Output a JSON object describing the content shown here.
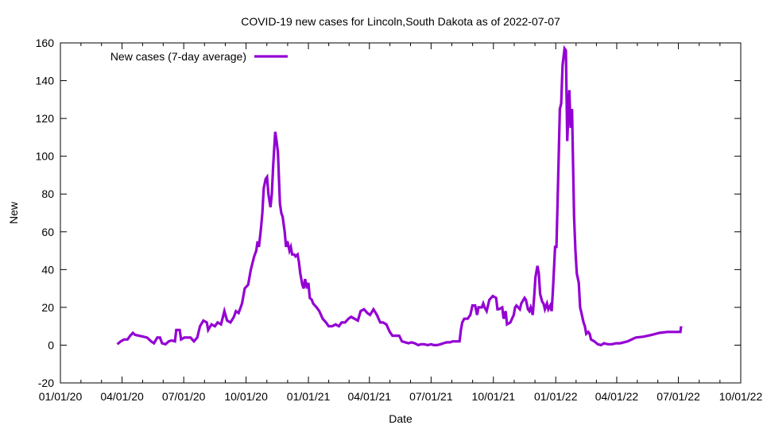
{
  "chart_data": {
    "type": "line",
    "title": "COVID-19 new cases for Lincoln,South Dakota as of 2022-07-07",
    "xlabel": "Date",
    "ylabel": "New",
    "ylim": [
      -20,
      160
    ],
    "yticks": [
      -20,
      0,
      20,
      40,
      60,
      80,
      100,
      120,
      140,
      160
    ],
    "x_unit": "days since 2020-01-01",
    "xlim": [
      0,
      1004
    ],
    "xticks": [
      {
        "day": 0,
        "label": "01/01/20"
      },
      {
        "day": 91,
        "label": "04/01/20"
      },
      {
        "day": 182,
        "label": "07/01/20"
      },
      {
        "day": 274,
        "label": "10/01/20"
      },
      {
        "day": 366,
        "label": "01/01/21"
      },
      {
        "day": 456,
        "label": "04/01/21"
      },
      {
        "day": 547,
        "label": "07/01/21"
      },
      {
        "day": 639,
        "label": "10/01/21"
      },
      {
        "day": 731,
        "label": "01/01/22"
      },
      {
        "day": 821,
        "label": "04/01/22"
      },
      {
        "day": 912,
        "label": "07/01/22"
      },
      {
        "day": 1004,
        "label": "10/01/22"
      }
    ],
    "legend_position": "top-left",
    "series": [
      {
        "name": "New cases (7-day average)",
        "color": "#9400d3",
        "days": [
          84,
          89,
          94,
          99,
          103,
          107,
          110,
          116,
          122,
          128,
          134,
          138,
          143,
          147,
          150,
          155,
          160,
          164,
          169,
          171,
          176,
          178,
          183,
          188,
          192,
          197,
          202,
          206,
          211,
          216,
          218,
          223,
          228,
          232,
          237,
          242,
          246,
          251,
          256,
          259,
          263,
          268,
          272,
          277,
          281,
          286,
          289,
          291,
          293,
          296,
          298,
          300,
          303,
          305,
          307,
          310,
          312,
          314,
          317,
          319,
          321,
          324,
          326,
          328,
          331,
          333,
          335,
          338,
          340,
          342,
          345,
          347,
          350,
          352,
          354,
          357,
          359,
          361,
          364,
          366,
          368,
          371,
          373,
          378,
          382,
          387,
          392,
          396,
          401,
          406,
          411,
          415,
          420,
          425,
          429,
          434,
          439,
          443,
          448,
          453,
          457,
          462,
          467,
          472,
          476,
          481,
          486,
          490,
          495,
          500,
          504,
          509,
          514,
          518,
          523,
          528,
          532,
          537,
          542,
          547,
          551,
          556,
          561,
          565,
          570,
          575,
          579,
          584,
          589,
          591,
          593,
          596,
          601,
          605,
          608,
          612,
          615,
          617,
          622,
          624,
          626,
          629,
          633,
          638,
          643,
          645,
          647,
          652,
          654,
          657,
          659,
          664,
          669,
          671,
          673,
          678,
          680,
          685,
          687,
          690,
          692,
          694,
          697,
          699,
          701,
          704,
          706,
          708,
          711,
          713,
          715,
          718,
          720,
          723,
          725,
          727,
          730,
          732,
          734,
          737,
          739,
          741,
          744,
          746,
          748,
          751,
          753,
          755,
          758,
          760,
          762,
          765,
          767,
          769,
          772,
          774,
          776,
          779,
          781,
          783,
          788,
          793,
          798,
          802,
          808,
          814,
          820,
          826,
          837,
          849,
          861,
          873,
          884,
          896,
          908,
          915,
          916
        ],
        "values": [
          0.5,
          2,
          3,
          3,
          5,
          6.5,
          5.5,
          5,
          4.5,
          4,
          2,
          1,
          4,
          4,
          1,
          0.5,
          2,
          2.5,
          2,
          8,
          8,
          3,
          4,
          4,
          4,
          2,
          4,
          10,
          13,
          12,
          8,
          11,
          10,
          12,
          11,
          18,
          13,
          12,
          15,
          18,
          17,
          22,
          30,
          32,
          40,
          47,
          50,
          55,
          52,
          62,
          70,
          83,
          88,
          89,
          80,
          73,
          80,
          95,
          113,
          108,
          102,
          75,
          70,
          68,
          60,
          52,
          55,
          50,
          52,
          48,
          48,
          47,
          48,
          44,
          38,
          32,
          30,
          35,
          30,
          33,
          25,
          24,
          22,
          20,
          18,
          14,
          12,
          10,
          10,
          11,
          10,
          12,
          12,
          14,
          15,
          14,
          13,
          18,
          19,
          17,
          16,
          19,
          16,
          12,
          12,
          11,
          7,
          5,
          5,
          5,
          2,
          1.5,
          1,
          1.5,
          1,
          0,
          0.5,
          0.5,
          0,
          0.5,
          0,
          0,
          0.5,
          1,
          1.5,
          1.5,
          2,
          2,
          2,
          8,
          12,
          14,
          14,
          16,
          21,
          21,
          16,
          20,
          20,
          22,
          20,
          18,
          24,
          26,
          25,
          19,
          19,
          20,
          14,
          18,
          11,
          12,
          16,
          20,
          21,
          19,
          22,
          25,
          24,
          19,
          18,
          20,
          16,
          25,
          36,
          42,
          38,
          27,
          23,
          22,
          19,
          22,
          19,
          21,
          18,
          30,
          52,
          52,
          80,
          125,
          128,
          148,
          157,
          156,
          108,
          135,
          115,
          125,
          68,
          50,
          38,
          33,
          20,
          17,
          12,
          10,
          6,
          7,
          6,
          3,
          2,
          0.5,
          0,
          1,
          0.5,
          0.5,
          1,
          1,
          2,
          4,
          4.5,
          5.5,
          6.5,
          7,
          7,
          7,
          10
        ]
      }
    ]
  }
}
